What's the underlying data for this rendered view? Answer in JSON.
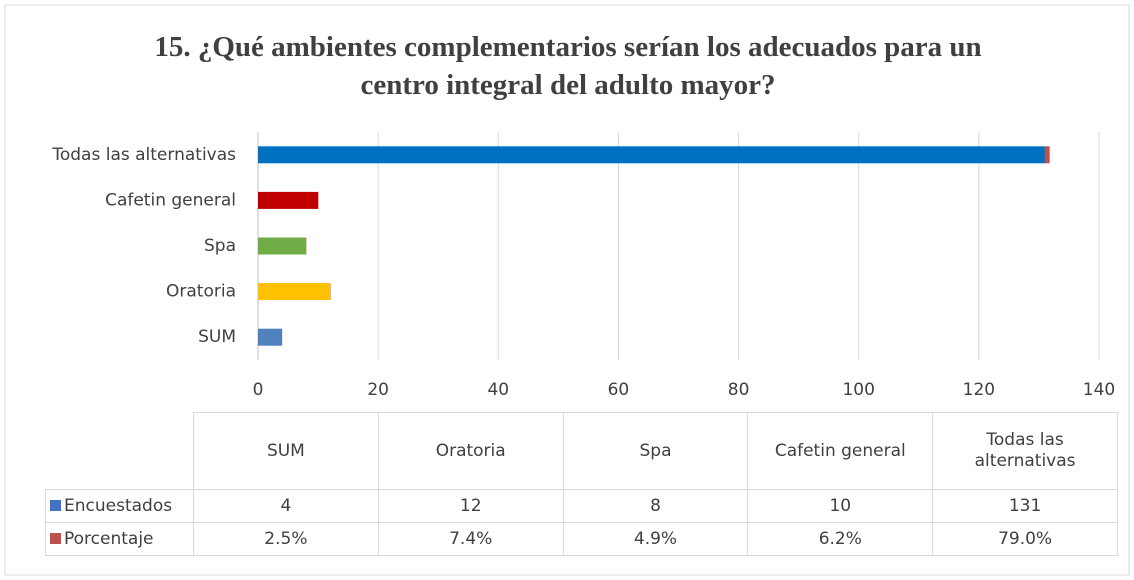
{
  "chart_data": {
    "type": "bar",
    "orientation": "horizontal",
    "stacked": true,
    "title": "15. ¿Qué ambientes complementarios serían los adecuados para un centro integral del adulto mayor?",
    "categories": [
      "SUM",
      "Oratoria",
      "Spa",
      "Cafetin general",
      "Todas las alternativas"
    ],
    "colors": [
      "#4f81bd",
      "#ffc000",
      "#70ad47",
      "#c00000",
      "#0070c0"
    ],
    "series": [
      {
        "name": "Encuestados",
        "color": "#4472c4",
        "values": [
          4,
          12,
          8,
          10,
          131
        ]
      },
      {
        "name": "Porcentaje",
        "color": "#c0504d",
        "values": [
          0.025,
          0.074,
          0.049,
          0.062,
          0.79
        ],
        "value_labels": [
          "2.5%",
          "7.4%",
          "4.9%",
          "6.2%",
          "79.0%"
        ]
      }
    ],
    "xlim": [
      0,
      140
    ],
    "xticks": [
      0,
      20,
      40,
      60,
      80,
      100,
      120,
      140
    ],
    "grid": true,
    "data_table": true
  }
}
